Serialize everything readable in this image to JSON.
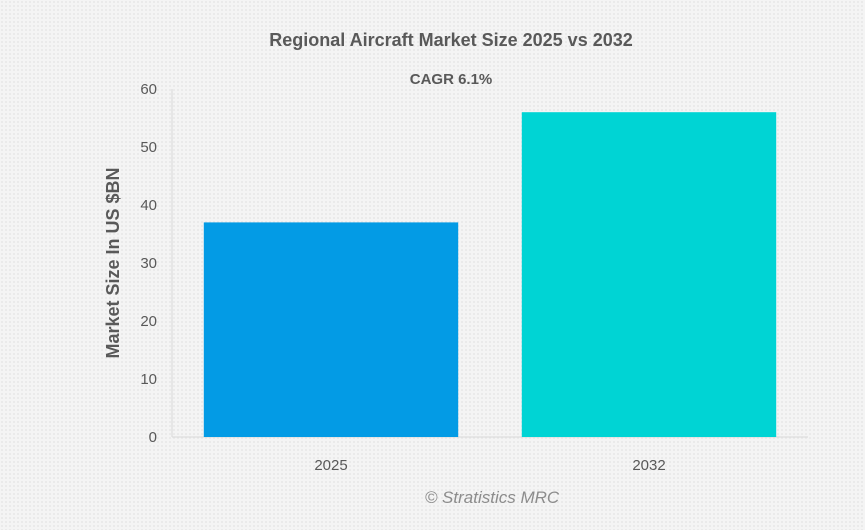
{
  "chart_data": {
    "type": "bar",
    "title": "Regional Aircraft Market Size 2025 vs 2032",
    "subtitle": "CAGR 6.1%",
    "categories": [
      "2025",
      "2032"
    ],
    "values": [
      37,
      56
    ],
    "colors": [
      "#039be5",
      "#00d4d4"
    ],
    "xlabel": "",
    "ylabel": "Market Size In US $BN",
    "ylim": [
      0,
      60
    ],
    "yticks": [
      "0",
      "10",
      "20",
      "30",
      "40",
      "50",
      "60"
    ],
    "grid": false,
    "legend": "none"
  },
  "watermark": "© Stratistics MRC"
}
